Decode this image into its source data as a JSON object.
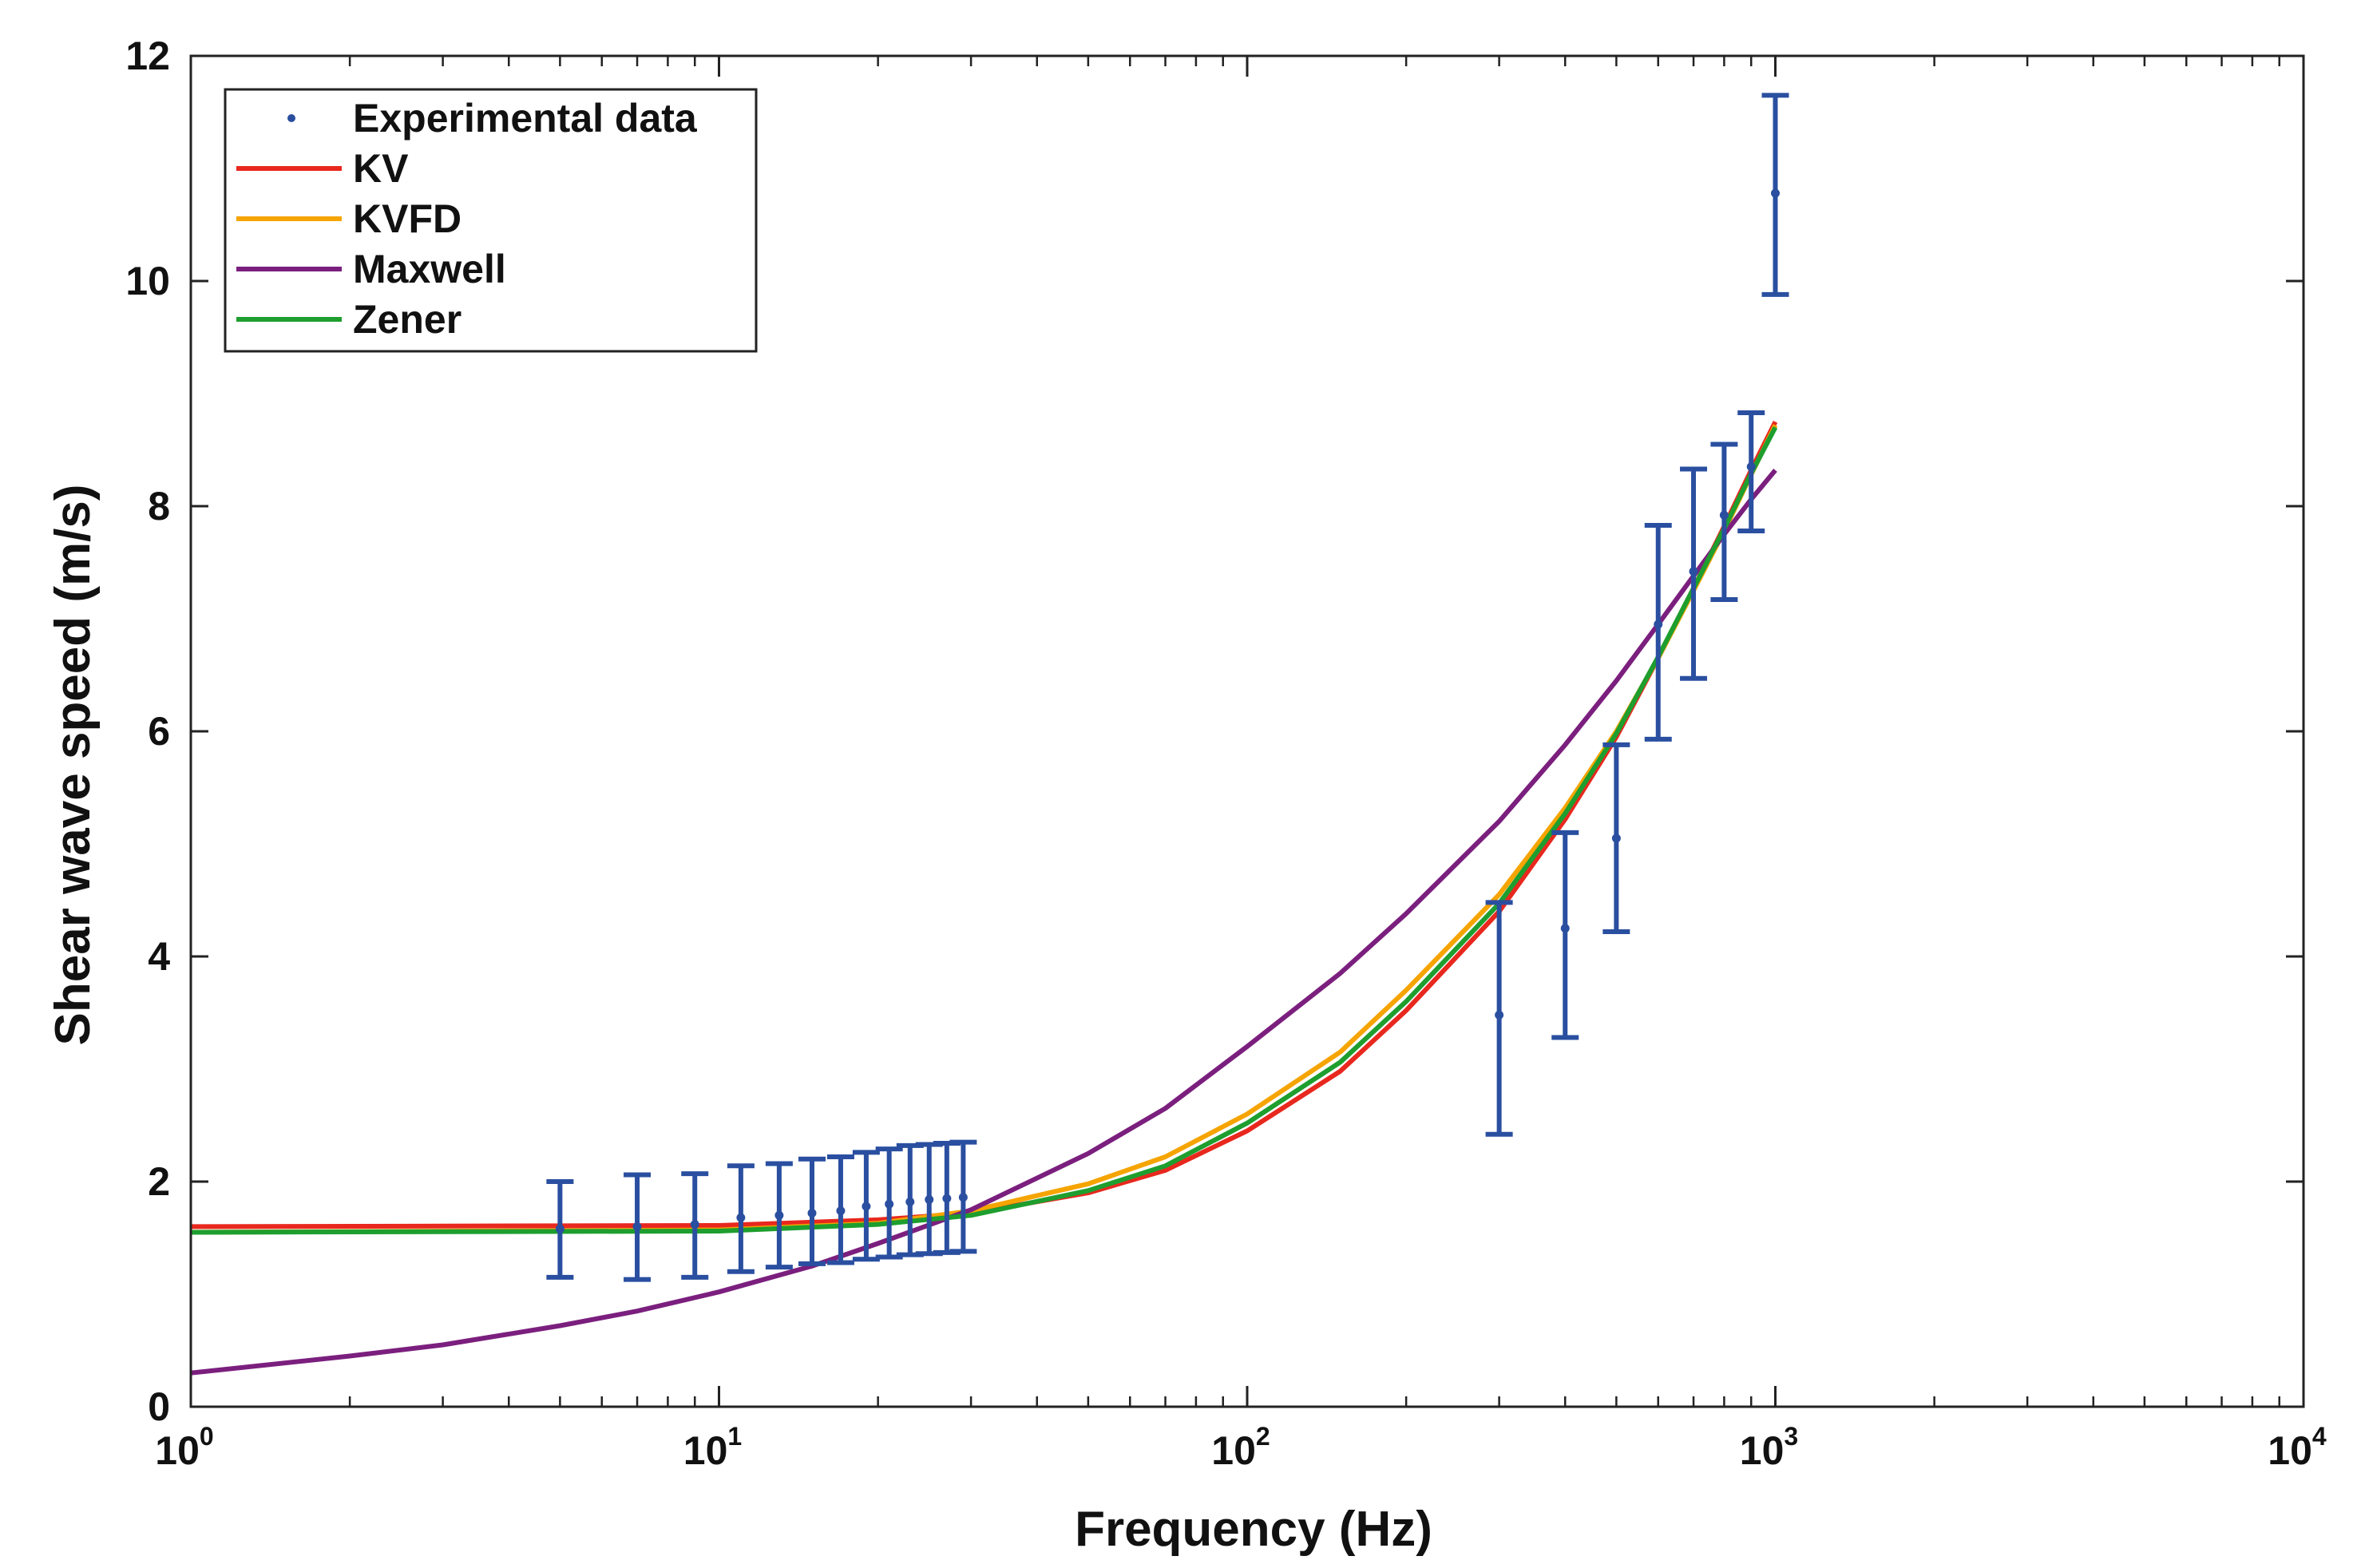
{
  "chart_data": {
    "type": "line",
    "xlabel": "Frequency (Hz)",
    "ylabel": "Shear wave speed (m/s)",
    "xscale": "log",
    "xlim": [
      1,
      10000
    ],
    "ylim": [
      0,
      12
    ],
    "x_tick_labels": [
      {
        "base": "10",
        "exp": "0"
      },
      {
        "base": "10",
        "exp": "1"
      },
      {
        "base": "10",
        "exp": "2"
      },
      {
        "base": "10",
        "exp": "3"
      },
      {
        "base": "10",
        "exp": "4"
      }
    ],
    "y_tick_labels": [
      "0",
      "2",
      "4",
      "6",
      "8",
      "10",
      "12"
    ],
    "legend_position": "top-left",
    "legend": [
      "Experimental data",
      "KV",
      "KVFD",
      "Maxwell",
      "Zener"
    ],
    "experimental_data": {
      "name": "Experimental data",
      "color": "#2a4fa0",
      "points": [
        {
          "x": 5,
          "y": 1.58,
          "err_low": 1.15,
          "err_high": 2.0
        },
        {
          "x": 7,
          "y": 1.6,
          "err_low": 1.13,
          "err_high": 2.06
        },
        {
          "x": 9,
          "y": 1.62,
          "err_low": 1.15,
          "err_high": 2.07
        },
        {
          "x": 11,
          "y": 1.68,
          "err_low": 1.2,
          "err_high": 2.14
        },
        {
          "x": 13,
          "y": 1.7,
          "err_low": 1.24,
          "err_high": 2.16
        },
        {
          "x": 15,
          "y": 1.72,
          "err_low": 1.27,
          "err_high": 2.2
        },
        {
          "x": 17,
          "y": 1.74,
          "err_low": 1.28,
          "err_high": 2.22
        },
        {
          "x": 19,
          "y": 1.78,
          "err_low": 1.31,
          "err_high": 2.26
        },
        {
          "x": 21,
          "y": 1.8,
          "err_low": 1.33,
          "err_high": 2.29
        },
        {
          "x": 23,
          "y": 1.82,
          "err_low": 1.35,
          "err_high": 2.32
        },
        {
          "x": 25,
          "y": 1.84,
          "err_low": 1.36,
          "err_high": 2.33
        },
        {
          "x": 27,
          "y": 1.85,
          "err_low": 1.37,
          "err_high": 2.34
        },
        {
          "x": 29,
          "y": 1.86,
          "err_low": 1.38,
          "err_high": 2.35
        },
        {
          "x": 300,
          "y": 3.48,
          "err_low": 2.42,
          "err_high": 4.48
        },
        {
          "x": 400,
          "y": 4.25,
          "err_low": 3.28,
          "err_high": 5.1
        },
        {
          "x": 500,
          "y": 5.05,
          "err_low": 4.22,
          "err_high": 5.88
        },
        {
          "x": 600,
          "y": 6.95,
          "err_low": 5.93,
          "err_high": 7.83
        },
        {
          "x": 700,
          "y": 7.42,
          "err_low": 6.47,
          "err_high": 8.33
        },
        {
          "x": 800,
          "y": 7.92,
          "err_low": 7.17,
          "err_high": 8.55
        },
        {
          "x": 900,
          "y": 8.35,
          "err_low": 7.78,
          "err_high": 8.83
        },
        {
          "x": 1000,
          "y": 10.78,
          "err_low": 9.88,
          "err_high": 11.65
        }
      ]
    },
    "series": [
      {
        "name": "KV",
        "color": "#e8281e",
        "x": [
          1,
          10,
          20,
          30,
          50,
          70,
          100,
          150,
          200,
          300,
          400,
          500,
          600,
          700,
          800,
          900,
          1000
        ],
        "y": [
          1.6,
          1.61,
          1.66,
          1.72,
          1.9,
          2.1,
          2.45,
          2.98,
          3.52,
          4.4,
          5.22,
          5.95,
          6.65,
          7.27,
          7.82,
          8.32,
          8.75
        ]
      },
      {
        "name": "KVFD",
        "color": "#f5a400",
        "x": [
          1,
          10,
          20,
          30,
          50,
          70,
          100,
          150,
          200,
          300,
          400,
          500,
          600,
          700,
          800,
          900,
          1000
        ],
        "y": [
          1.55,
          1.57,
          1.63,
          1.74,
          1.98,
          2.22,
          2.6,
          3.15,
          3.7,
          4.55,
          5.32,
          6.0,
          6.65,
          7.25,
          7.78,
          8.28,
          8.72
        ]
      },
      {
        "name": "Maxwell",
        "color": "#7b1f7e",
        "x": [
          1,
          2,
          3,
          5,
          7,
          10,
          15,
          20,
          30,
          50,
          70,
          100,
          150,
          200,
          300,
          400,
          500,
          600,
          700,
          800,
          900,
          1000
        ],
        "y": [
          0.3,
          0.45,
          0.55,
          0.72,
          0.85,
          1.02,
          1.25,
          1.45,
          1.75,
          2.25,
          2.65,
          3.2,
          3.85,
          4.38,
          5.2,
          5.88,
          6.45,
          6.95,
          7.38,
          7.75,
          8.06,
          8.32
        ]
      },
      {
        "name": "Zener",
        "color": "#1e9e2e",
        "x": [
          1,
          10,
          20,
          30,
          50,
          70,
          100,
          150,
          200,
          300,
          400,
          500,
          600,
          700,
          800,
          900,
          1000
        ],
        "y": [
          1.55,
          1.56,
          1.62,
          1.7,
          1.92,
          2.14,
          2.52,
          3.06,
          3.6,
          4.47,
          5.27,
          5.98,
          6.66,
          7.27,
          7.8,
          8.29,
          8.7
        ]
      }
    ],
    "grid": false
  }
}
